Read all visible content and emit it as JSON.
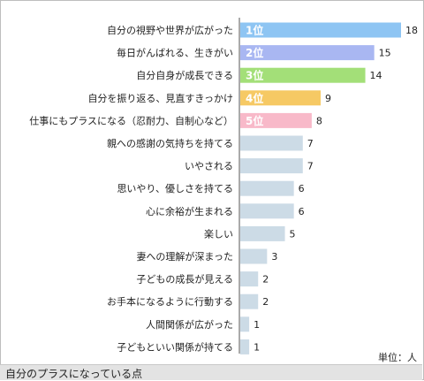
{
  "chart_data": {
    "type": "bar",
    "orientation": "horizontal",
    "categories": [
      "自分の視野や世界が広がった",
      "毎日がんばれる、生きがい",
      "自分自身が成長できる",
      "自分を振り返る、見直すきっかけ",
      "仕事にもプラスになる（忍耐力、自制心など）",
      "親への感謝の気持ちを持てる",
      "いやされる",
      "思いやり、優しさを持てる",
      "心に余裕が生まれる",
      "楽しい",
      "妻への理解が深まった",
      "子どもの成長が見える",
      "お手本になるように行動する",
      "人間関係が広がった",
      "子どもといい関係が持てる"
    ],
    "values": [
      18,
      15,
      14,
      9,
      8,
      7,
      7,
      6,
      6,
      5,
      3,
      2,
      2,
      1,
      1
    ],
    "rank_labels": [
      "1位",
      "2位",
      "3位",
      "4位",
      "5位"
    ],
    "rank_colors": [
      "#8ec5f3",
      "#a9b7f2",
      "#a3df78",
      "#f6c964",
      "#f8b9c9"
    ],
    "default_color": "#ccdbe6",
    "xlim": [
      0,
      18
    ],
    "unit_label": "単位：人",
    "caption": "自分のプラスになっている点",
    "legend": "none",
    "grid": false
  }
}
